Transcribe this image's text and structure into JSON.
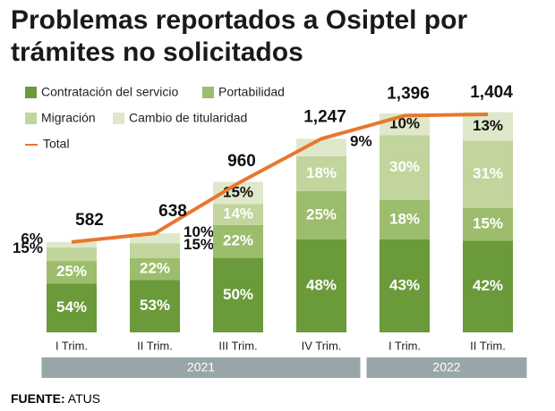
{
  "chart_data": {
    "type": "stacked-bar",
    "title": [
      "Problemas reportados a Osiptel por",
      "trámites no solicitados"
    ],
    "categories": [
      "I Trim.",
      "II Trim.",
      "III Trim.",
      "IV Trim.",
      "I Trim.",
      "II Trim."
    ],
    "groups": [
      {
        "label": "2021",
        "count": 4
      },
      {
        "label": "2022",
        "count": 2
      }
    ],
    "series": [
      {
        "name": "Contratación del servicio",
        "color": "#6b9a3a",
        "label_color": "#ffffff",
        "values": [
          54,
          53,
          50,
          48,
          43,
          42
        ],
        "value_labels": [
          "54%",
          "53%",
          "50%",
          "48%",
          "43%",
          "42%"
        ]
      },
      {
        "name": "Portabilidad",
        "color": "#9cbd6b",
        "label_color": "#ffffff",
        "values": [
          25,
          22,
          22,
          25,
          18,
          15
        ],
        "value_labels": [
          "25%",
          "22%",
          "22%",
          "25%",
          "18%",
          "15%"
        ]
      },
      {
        "name": "Migración",
        "color": "#c1d59c",
        "label_color": "#ffffff",
        "values": [
          15,
          15,
          14,
          18,
          30,
          31
        ],
        "value_labels": [
          "15%",
          "15%",
          "14%",
          "18%",
          "30%",
          "31%"
        ]
      },
      {
        "name": "Cambio de titularidad",
        "color": "#dfe8ca",
        "label_color": "#111111",
        "values": [
          6,
          10,
          15,
          9,
          10,
          13
        ],
        "value_labels": [
          "6%",
          "10%",
          "15%",
          "9%",
          "10%",
          "13%"
        ]
      }
    ],
    "total": {
      "name": "Total",
      "color": "#e8772e",
      "values": [
        582,
        638,
        960,
        1247,
        1396,
        1404
      ],
      "value_labels": [
        "582",
        "638",
        "960",
        "1,247",
        "1,396",
        "1,404"
      ]
    },
    "source": {
      "label": "FUENTE:",
      "text": "ATUS"
    }
  }
}
